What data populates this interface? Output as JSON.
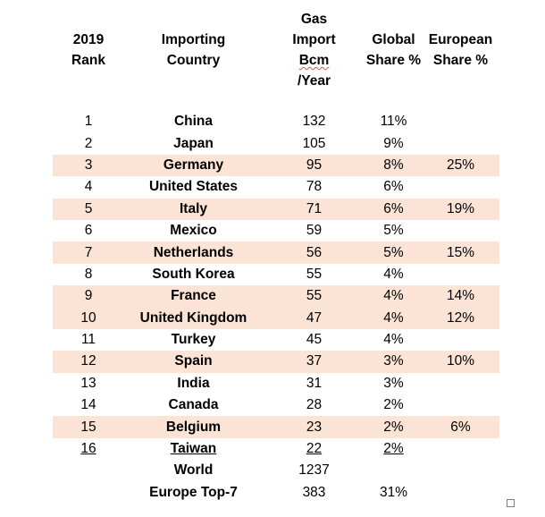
{
  "headers": {
    "rank": [
      "2019",
      "Rank"
    ],
    "country": [
      "Importing",
      "Country"
    ],
    "import": [
      "Gas",
      "Import",
      "Bcm",
      "/Year"
    ],
    "global": [
      "Global",
      "Share %"
    ],
    "european": [
      "European",
      "Share %"
    ]
  },
  "rows": [
    {
      "rank": "1",
      "country": "China",
      "import": "132",
      "global": "11%",
      "european": ""
    },
    {
      "rank": "2",
      "country": "Japan",
      "import": "105",
      "global": "9%",
      "european": ""
    },
    {
      "rank": "3",
      "country": "Germany",
      "import": "95",
      "global": "8%",
      "european": "25%"
    },
    {
      "rank": "4",
      "country": "United States",
      "import": "78",
      "global": "6%",
      "european": ""
    },
    {
      "rank": "5",
      "country": "Italy",
      "import": "71",
      "global": "6%",
      "european": "19%"
    },
    {
      "rank": "6",
      "country": "Mexico",
      "import": "59",
      "global": "5%",
      "european": ""
    },
    {
      "rank": "7",
      "country": "Netherlands",
      "import": "56",
      "global": "5%",
      "european": "15%"
    },
    {
      "rank": "8",
      "country": "South Korea",
      "import": "55",
      "global": "4%",
      "european": ""
    },
    {
      "rank": "9",
      "country": "France",
      "import": "55",
      "global": "4%",
      "european": "14%"
    },
    {
      "rank": "10",
      "country": "United Kingdom",
      "import": "47",
      "global": "4%",
      "european": "12%"
    },
    {
      "rank": "11",
      "country": "Turkey",
      "import": "45",
      "global": "4%",
      "european": ""
    },
    {
      "rank": "12",
      "country": "Spain",
      "import": "37",
      "global": "3%",
      "european": "10%"
    },
    {
      "rank": "13",
      "country": "India",
      "import": "31",
      "global": "3%",
      "european": ""
    },
    {
      "rank": "14",
      "country": "Canada",
      "import": "28",
      "global": "2%",
      "european": ""
    },
    {
      "rank": "15",
      "country": "Belgium",
      "import": "23",
      "global": "2%",
      "european": "6%"
    },
    {
      "rank": "16",
      "country": "Taiwan",
      "import": "22",
      "global": "2%",
      "european": ""
    }
  ],
  "totals": {
    "world": {
      "label": "World",
      "import": "1237",
      "global": ""
    },
    "europe": {
      "label": "Europe Top-7",
      "import": "383",
      "global": "31%"
    }
  },
  "colors": {
    "european_row_highlight": "#fbe4d5"
  }
}
